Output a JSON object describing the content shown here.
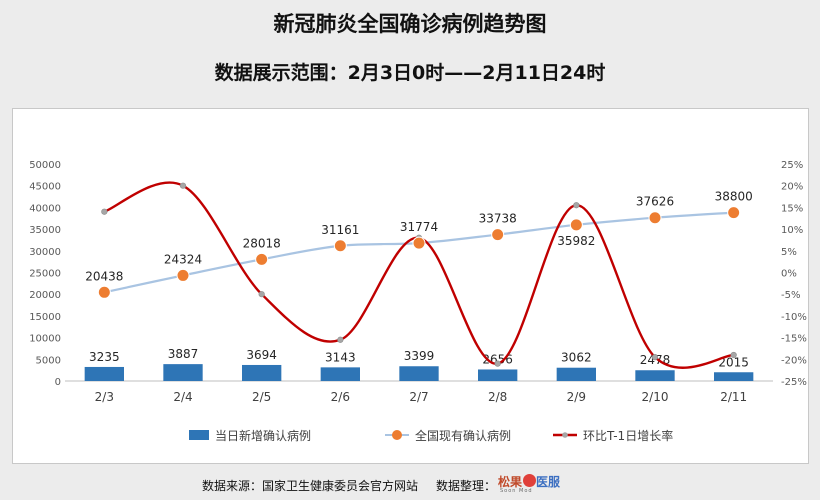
{
  "title": "新冠肺炎全国确诊病例趋势图",
  "subtitle": "数据展示范围：2月3日0时——2月11日24时",
  "footer": {
    "source": "数据来源：国家卫生健康委员会官方网站",
    "organizer": "数据整理：",
    "logo_cn_1": "松果",
    "logo_cn_2": "医服",
    "logo_en": "Soon Mod"
  },
  "colors": {
    "bar": "#2e75b6",
    "existing_line": "#a9c4e2",
    "existing_marker": "#ed7d31",
    "growth_line": "#c00000",
    "growth_marker": "#a6a6a6"
  },
  "chart_data": {
    "type": "bar",
    "categories": [
      "2/3",
      "2/4",
      "2/5",
      "2/6",
      "2/7",
      "2/8",
      "2/9",
      "2/10",
      "2/11"
    ],
    "series": [
      {
        "name": "当日新增确认病例",
        "type": "bar",
        "axis": "left",
        "values": [
          3235,
          3887,
          3694,
          3143,
          3399,
          2656,
          3062,
          2478,
          2015
        ]
      },
      {
        "name": "全国现有确认病例",
        "type": "line",
        "axis": "left",
        "values": [
          20438,
          24324,
          28018,
          31161,
          31774,
          33738,
          35982,
          37626,
          38800
        ]
      },
      {
        "name": "环比T-1日增长率",
        "type": "line",
        "axis": "right",
        "unit": "%",
        "values": [
          14,
          20,
          -5,
          -15.5,
          8,
          -21,
          15.5,
          -19.5,
          -19
        ]
      }
    ],
    "left_axis": {
      "min": 0,
      "max": 50000,
      "ticks": [
        "0",
        "5000",
        "10000",
        "15000",
        "20000",
        "25000",
        "30000",
        "35000",
        "40000",
        "45000",
        "50000"
      ]
    },
    "right_axis": {
      "min": -25,
      "max": 25,
      "ticks": [
        "-25%",
        "-20%",
        "-15%",
        "-10%",
        "-5%",
        "0%",
        "5%",
        "10%",
        "15%",
        "20%",
        "25%"
      ]
    },
    "legend_position": "bottom",
    "grid": false
  }
}
